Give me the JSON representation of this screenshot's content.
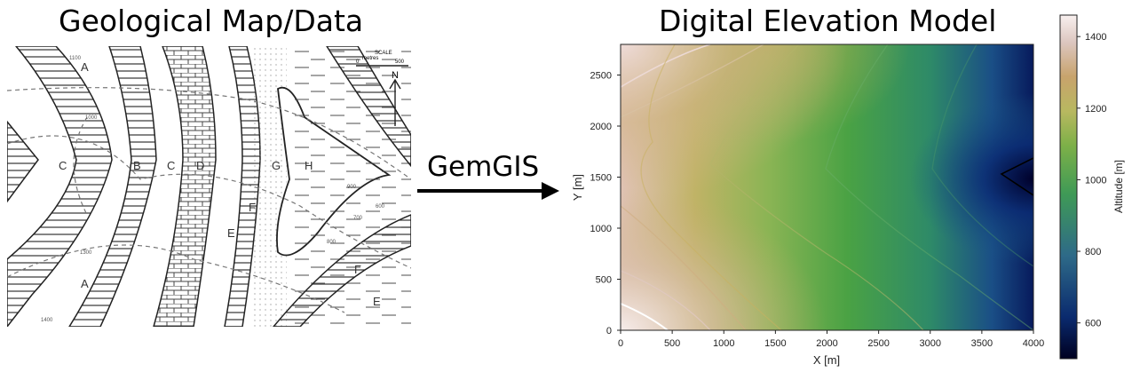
{
  "left_panel": {
    "title": "Geological Map/Data",
    "unit_labels": [
      "A",
      "B",
      "C",
      "C",
      "D",
      "E",
      "F",
      "G",
      "H",
      "A",
      "F",
      "E"
    ],
    "scale_label": "SCALE",
    "scale_units": "metres",
    "scale_zero": "0",
    "scale_max": "500",
    "north_label": "N",
    "contour_labels": [
      "1100",
      "1000",
      "900",
      "800",
      "700",
      "600",
      "1400",
      "1300"
    ]
  },
  "connector": {
    "label": "GemGIS"
  },
  "right_panel": {
    "title": "Digital Elevation Model"
  },
  "chart_data": {
    "type": "heatmap",
    "title": "Digital Elevation Model",
    "xlabel": "X [m]",
    "ylabel": "Y [m]",
    "xlim": [
      0,
      4000
    ],
    "ylim": [
      0,
      2800
    ],
    "xticks": [
      "0",
      "500",
      "1000",
      "1500",
      "2000",
      "2500",
      "3000",
      "3500",
      "4000"
    ],
    "yticks": [
      "0",
      "500",
      "1000",
      "1500",
      "2000",
      "2500"
    ],
    "colorbar": {
      "label": "Altitude [m]",
      "range": [
        500,
        1460
      ],
      "ticks": [
        "600",
        "800",
        "1000",
        "1200",
        "1400"
      ],
      "colormap": [
        "#000020",
        "#0a2a6e",
        "#2e6a88",
        "#3f9a56",
        "#7db048",
        "#b8b860",
        "#c8a36c",
        "#dcc6bf",
        "#f8f0ef"
      ]
    },
    "contour_levels": [
      600,
      700,
      800,
      900,
      1000,
      1100,
      1200,
      1300,
      1400
    ]
  }
}
